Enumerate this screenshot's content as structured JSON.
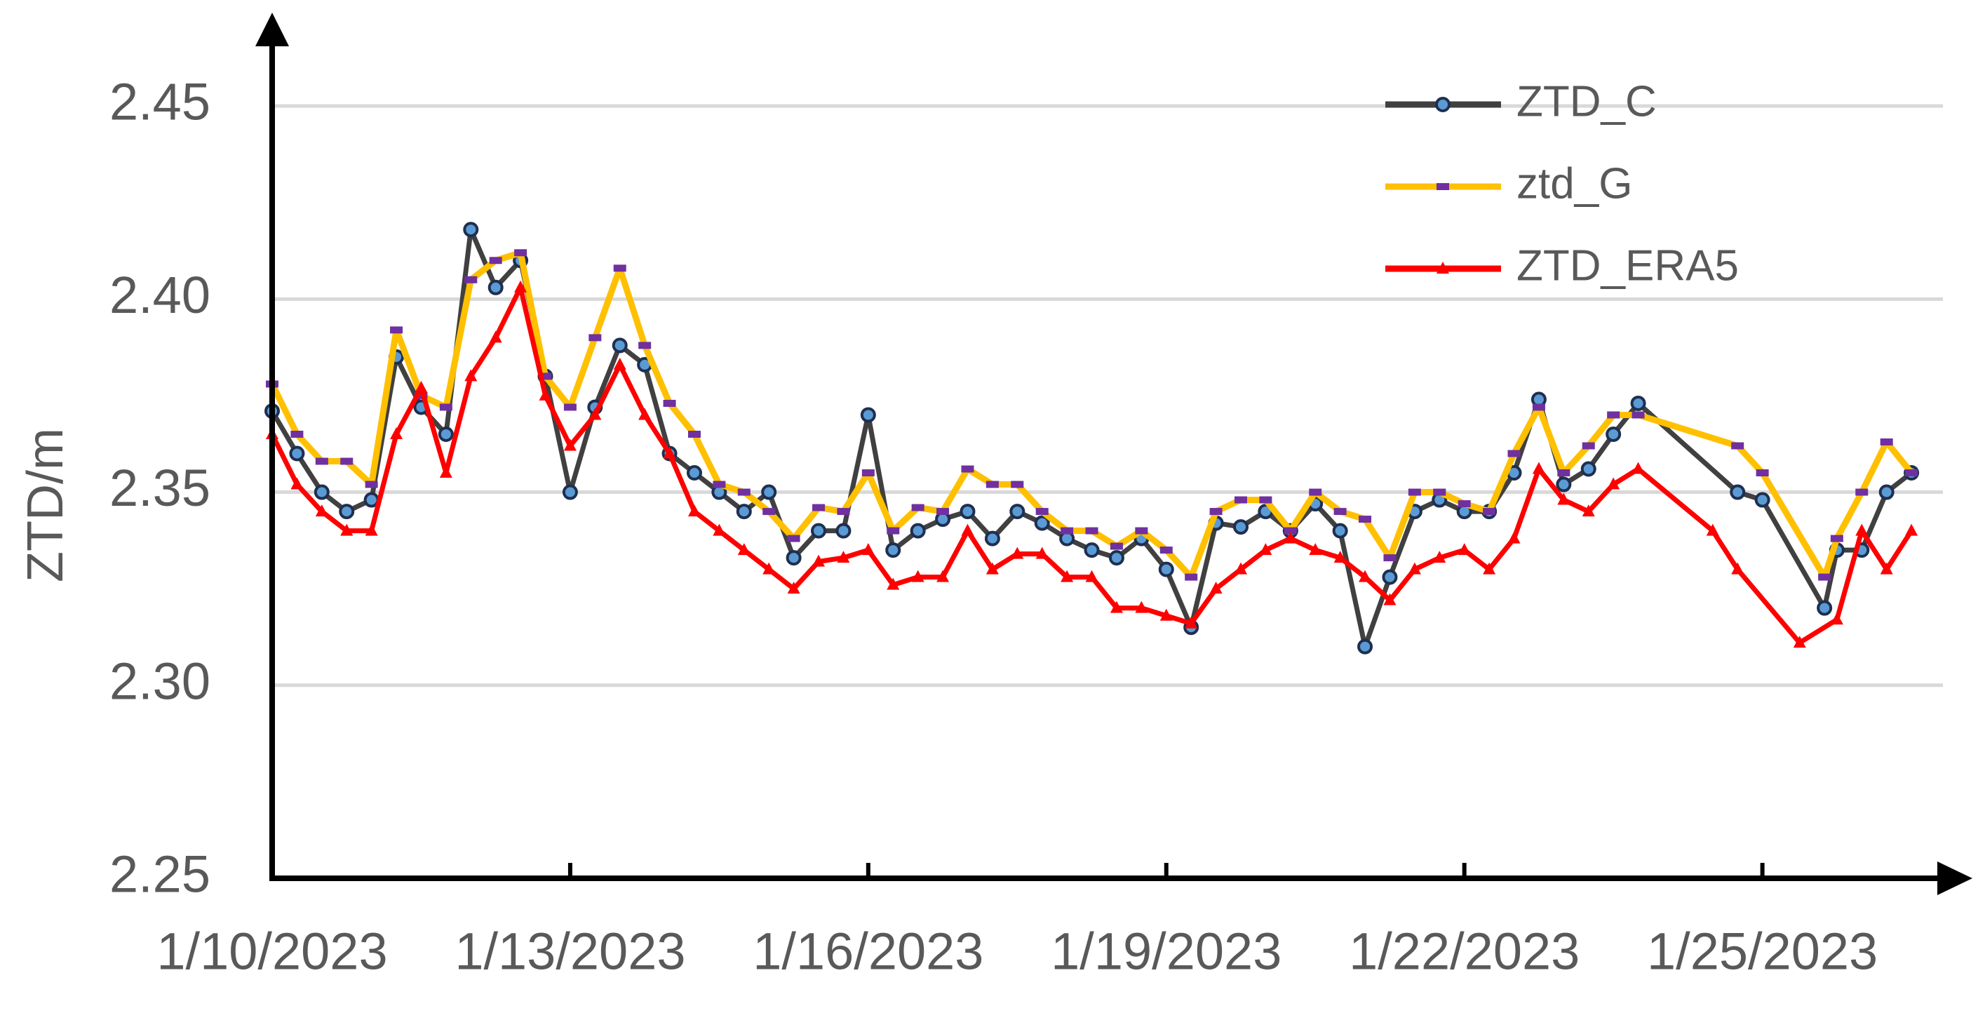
{
  "chart_data": {
    "type": "line",
    "y_label": "ZTD/m",
    "xlim": [
      "2023-01-10T00:00",
      "2023-01-26T23:00"
    ],
    "xticks": [
      {
        "value": "2023-01-10T00:00",
        "label": "1/10/2023"
      },
      {
        "value": "2023-01-13T00:00",
        "label": "1/13/2023"
      },
      {
        "value": "2023-01-16T00:00",
        "label": "1/16/2023"
      },
      {
        "value": "2023-01-19T00:00",
        "label": "1/19/2023"
      },
      {
        "value": "2023-01-22T00:00",
        "label": "1/22/2023"
      },
      {
        "value": "2023-01-25T00:00",
        "label": "1/25/2023"
      }
    ],
    "ylim": [
      2.25,
      2.47
    ],
    "yticks": [
      2.25,
      {
        "value": 2.3,
        "label": "2.30"
      },
      2.35,
      {
        "value": 2.4,
        "label": "2.40"
      },
      2.45
    ],
    "grid": true,
    "legend": "upper right",
    "series": [
      {
        "name": "ZTD_C",
        "color": "#404040",
        "marker": "circle",
        "marker_color": "#5b9bd5",
        "x": [
          "2023-01-10T00:00",
          "2023-01-10T06:00",
          "2023-01-10T12:00",
          "2023-01-10T18:00",
          "2023-01-11T00:00",
          "2023-01-11T06:00",
          "2023-01-11T12:00",
          "2023-01-11T18:00",
          "2023-01-12T00:00",
          "2023-01-12T06:00",
          "2023-01-12T12:00",
          "2023-01-12T18:00",
          "2023-01-13T00:00",
          "2023-01-13T06:00",
          "2023-01-13T12:00",
          "2023-01-13T18:00",
          "2023-01-14T00:00",
          "2023-01-14T06:00",
          "2023-01-14T12:00",
          "2023-01-14T18:00",
          "2023-01-15T00:00",
          "2023-01-15T06:00",
          "2023-01-15T12:00",
          "2023-01-15T18:00",
          "2023-01-16T00:00",
          "2023-01-16T06:00",
          "2023-01-16T12:00",
          "2023-01-16T18:00",
          "2023-01-17T00:00",
          "2023-01-17T06:00",
          "2023-01-17T12:00",
          "2023-01-17T18:00",
          "2023-01-18T00:00",
          "2023-01-18T06:00",
          "2023-01-18T12:00",
          "2023-01-18T18:00",
          "2023-01-19T00:00",
          "2023-01-19T06:00",
          "2023-01-19T12:00",
          "2023-01-19T18:00",
          "2023-01-20T00:00",
          "2023-01-20T06:00",
          "2023-01-20T12:00",
          "2023-01-20T18:00",
          "2023-01-21T00:00",
          "2023-01-21T06:00",
          "2023-01-21T12:00",
          "2023-01-21T18:00",
          "2023-01-22T00:00",
          "2023-01-22T06:00",
          "2023-01-22T12:00",
          "2023-01-22T18:00",
          "2023-01-23T00:00",
          "2023-01-23T06:00",
          "2023-01-23T12:00",
          "2023-01-23T18:00",
          "2023-01-24T18:00",
          "2023-01-25T00:00",
          "2023-01-25T15:00",
          "2023-01-25T18:00",
          "2023-01-26T00:00",
          "2023-01-26T06:00",
          "2023-01-26T12:00"
        ],
        "values": [
          2.371,
          2.36,
          2.35,
          2.345,
          2.348,
          2.385,
          2.372,
          2.365,
          2.418,
          2.403,
          2.41,
          2.38,
          2.35,
          2.372,
          2.388,
          2.383,
          2.36,
          2.355,
          2.35,
          2.345,
          2.35,
          2.333,
          2.34,
          2.34,
          2.37,
          2.335,
          2.34,
          2.343,
          2.345,
          2.338,
          2.345,
          2.342,
          2.338,
          2.335,
          2.333,
          2.338,
          2.33,
          2.315,
          2.342,
          2.341,
          2.345,
          2.34,
          2.347,
          2.34,
          2.31,
          2.328,
          2.345,
          2.348,
          2.345,
          2.345,
          2.355,
          2.374,
          2.352,
          2.356,
          2.365,
          2.373,
          2.35,
          2.348,
          2.32,
          2.335,
          2.335,
          2.35,
          2.355
        ]
      },
      {
        "name": "ztd_G",
        "color": "#ffc000",
        "marker": "dash",
        "marker_color": "#7030a0",
        "x": [
          "2023-01-10T00:00",
          "2023-01-10T06:00",
          "2023-01-10T12:00",
          "2023-01-10T18:00",
          "2023-01-11T00:00",
          "2023-01-11T06:00",
          "2023-01-11T12:00",
          "2023-01-11T18:00",
          "2023-01-12T00:00",
          "2023-01-12T06:00",
          "2023-01-12T12:00",
          "2023-01-12T18:00",
          "2023-01-13T00:00",
          "2023-01-13T06:00",
          "2023-01-13T12:00",
          "2023-01-13T18:00",
          "2023-01-14T00:00",
          "2023-01-14T06:00",
          "2023-01-14T12:00",
          "2023-01-14T18:00",
          "2023-01-15T00:00",
          "2023-01-15T06:00",
          "2023-01-15T12:00",
          "2023-01-15T18:00",
          "2023-01-16T00:00",
          "2023-01-16T06:00",
          "2023-01-16T12:00",
          "2023-01-16T18:00",
          "2023-01-17T00:00",
          "2023-01-17T06:00",
          "2023-01-17T12:00",
          "2023-01-17T18:00",
          "2023-01-18T00:00",
          "2023-01-18T06:00",
          "2023-01-18T12:00",
          "2023-01-18T18:00",
          "2023-01-19T00:00",
          "2023-01-19T06:00",
          "2023-01-19T12:00",
          "2023-01-19T18:00",
          "2023-01-20T00:00",
          "2023-01-20T06:00",
          "2023-01-20T12:00",
          "2023-01-20T18:00",
          "2023-01-21T00:00",
          "2023-01-21T06:00",
          "2023-01-21T12:00",
          "2023-01-21T18:00",
          "2023-01-22T00:00",
          "2023-01-22T06:00",
          "2023-01-22T12:00",
          "2023-01-22T18:00",
          "2023-01-23T00:00",
          "2023-01-23T06:00",
          "2023-01-23T12:00",
          "2023-01-23T18:00",
          "2023-01-24T18:00",
          "2023-01-25T00:00",
          "2023-01-25T15:00",
          "2023-01-25T18:00",
          "2023-01-26T00:00",
          "2023-01-26T06:00",
          "2023-01-26T12:00"
        ],
        "values": [
          2.378,
          2.365,
          2.358,
          2.358,
          2.352,
          2.392,
          2.375,
          2.372,
          2.405,
          2.41,
          2.412,
          2.38,
          2.372,
          2.39,
          2.408,
          2.388,
          2.373,
          2.365,
          2.352,
          2.35,
          2.345,
          2.338,
          2.346,
          2.345,
          2.355,
          2.34,
          2.346,
          2.345,
          2.356,
          2.352,
          2.352,
          2.345,
          2.34,
          2.34,
          2.336,
          2.34,
          2.335,
          2.328,
          2.345,
          2.348,
          2.348,
          2.34,
          2.35,
          2.345,
          2.343,
          2.333,
          2.35,
          2.35,
          2.347,
          2.345,
          2.36,
          2.372,
          2.355,
          2.362,
          2.37,
          2.37,
          2.362,
          2.355,
          2.328,
          2.338,
          2.35,
          2.363,
          2.355
        ]
      },
      {
        "name": "ZTD_ERA5",
        "color": "#ff0000",
        "marker": "triangle",
        "marker_color": "#ff0000",
        "x": [
          "2023-01-10T00:00",
          "2023-01-10T06:00",
          "2023-01-10T12:00",
          "2023-01-10T18:00",
          "2023-01-11T00:00",
          "2023-01-11T06:00",
          "2023-01-11T12:00",
          "2023-01-11T18:00",
          "2023-01-12T00:00",
          "2023-01-12T06:00",
          "2023-01-12T12:00",
          "2023-01-12T18:00",
          "2023-01-13T00:00",
          "2023-01-13T06:00",
          "2023-01-13T12:00",
          "2023-01-13T18:00",
          "2023-01-14T00:00",
          "2023-01-14T06:00",
          "2023-01-14T12:00",
          "2023-01-14T18:00",
          "2023-01-15T00:00",
          "2023-01-15T06:00",
          "2023-01-15T12:00",
          "2023-01-15T18:00",
          "2023-01-16T00:00",
          "2023-01-16T06:00",
          "2023-01-16T12:00",
          "2023-01-16T18:00",
          "2023-01-17T00:00",
          "2023-01-17T06:00",
          "2023-01-17T12:00",
          "2023-01-17T18:00",
          "2023-01-18T00:00",
          "2023-01-18T06:00",
          "2023-01-18T12:00",
          "2023-01-18T18:00",
          "2023-01-19T00:00",
          "2023-01-19T06:00",
          "2023-01-19T12:00",
          "2023-01-19T18:00",
          "2023-01-20T00:00",
          "2023-01-20T06:00",
          "2023-01-20T12:00",
          "2023-01-20T18:00",
          "2023-01-21T00:00",
          "2023-01-21T06:00",
          "2023-01-21T12:00",
          "2023-01-21T18:00",
          "2023-01-22T00:00",
          "2023-01-22T06:00",
          "2023-01-22T12:00",
          "2023-01-22T18:00",
          "2023-01-23T00:00",
          "2023-01-23T06:00",
          "2023-01-23T12:00",
          "2023-01-23T18:00",
          "2023-01-24T12:00",
          "2023-01-24T18:00",
          "2023-01-25T09:00",
          "2023-01-25T18:00",
          "2023-01-26T00:00",
          "2023-01-26T06:00",
          "2023-01-26T12:00"
        ],
        "values": [
          2.365,
          2.352,
          2.345,
          2.34,
          2.34,
          2.365,
          2.377,
          2.355,
          2.38,
          2.39,
          2.403,
          2.375,
          2.362,
          2.37,
          2.383,
          2.37,
          2.36,
          2.345,
          2.34,
          2.335,
          2.33,
          2.325,
          2.332,
          2.333,
          2.335,
          2.326,
          2.328,
          2.328,
          2.34,
          2.33,
          2.334,
          2.334,
          2.328,
          2.328,
          2.32,
          2.32,
          2.318,
          2.316,
          2.325,
          2.33,
          2.335,
          2.338,
          2.335,
          2.333,
          2.328,
          2.322,
          2.33,
          2.333,
          2.335,
          2.33,
          2.338,
          2.356,
          2.348,
          2.345,
          2.352,
          2.356,
          2.34,
          2.33,
          2.311,
          2.317,
          2.34,
          2.33,
          2.34
        ]
      }
    ]
  }
}
